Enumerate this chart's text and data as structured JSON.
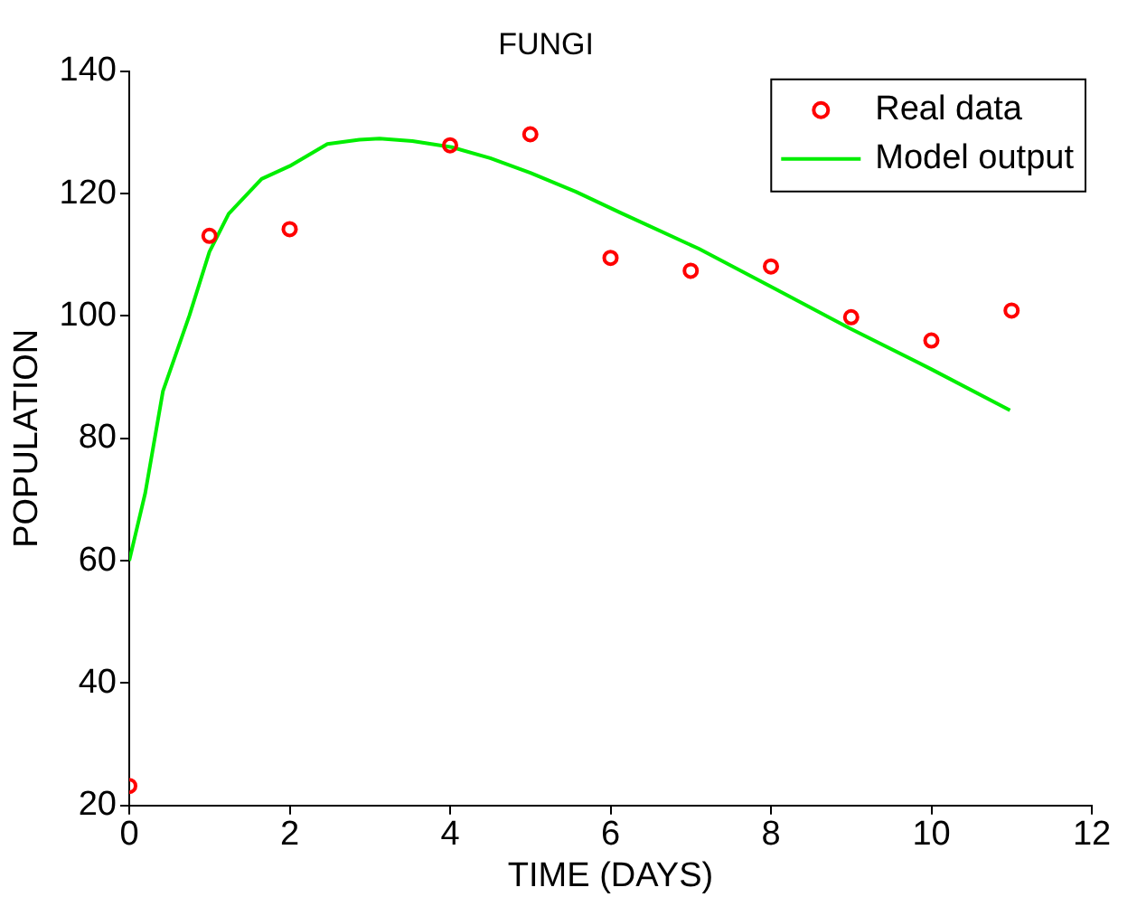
{
  "chart_data": {
    "type": "scatter",
    "title": "FUNGI",
    "xlabel": "TIME (DAYS)",
    "ylabel": "POPULATION",
    "xlim": [
      0,
      12
    ],
    "xticks": [
      0,
      2,
      4,
      6,
      8,
      10,
      12
    ],
    "ylim": [
      20,
      140
    ],
    "yticks": [
      20,
      40,
      60,
      80,
      100,
      120,
      140
    ],
    "grid": false,
    "legend": "top right",
    "series": [
      {
        "name": "Real data",
        "type": "scatter",
        "marker": "circle",
        "color": "#ff0000",
        "x": [
          0,
          1,
          2,
          4,
          5,
          6,
          7,
          8,
          9,
          10,
          11
        ],
        "values": [
          23.2,
          113.1,
          114.2,
          127.9,
          129.7,
          109.5,
          107.4,
          108.1,
          99.8,
          96.0,
          100.9
        ]
      },
      {
        "name": "Model output",
        "type": "line",
        "marker": "none",
        "line_style": "solid",
        "color": "#00ee00",
        "x": [
          0,
          0.2,
          0.42,
          0.75,
          1.0,
          1.24,
          1.65,
          2.0,
          2.47,
          2.87,
          3.12,
          3.53,
          4.02,
          4.5,
          5.0,
          5.57,
          6.12,
          7.1,
          8.0,
          8.98,
          10.0,
          10.98
        ],
        "values": [
          60,
          71.1,
          87.7,
          100.1,
          110.5,
          116.7,
          122.4,
          124.5,
          128.1,
          128.8,
          129.0,
          128.6,
          127.6,
          125.8,
          123.4,
          120.3,
          116.9,
          111.0,
          104.8,
          98.0,
          91.3,
          84.6
        ]
      }
    ]
  }
}
